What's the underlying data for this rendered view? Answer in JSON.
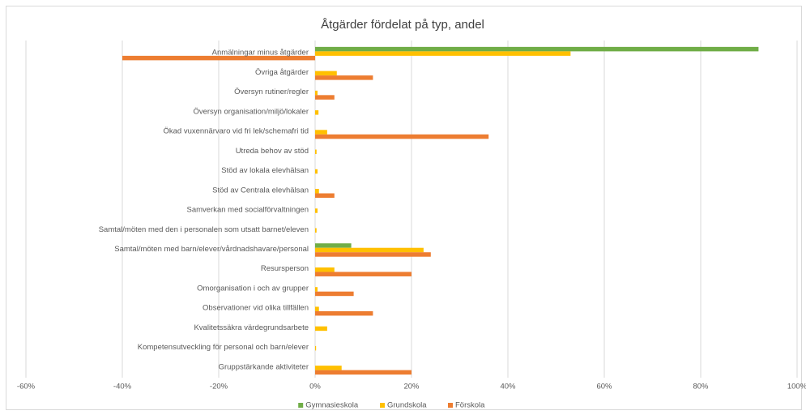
{
  "chart_data": {
    "type": "barh",
    "title": "Åtgärder fördelat på typ, andel",
    "categories": [
      "Anmälningar minus åtgärder",
      "Övriga åtgärder",
      "Översyn rutiner/regler",
      "Översyn organisation/miljö/lokaler",
      "Ökad vuxennärvaro vid fri lek/schemafri tid",
      "Utreda behov av stöd",
      "Stöd av lokala elevhälsan",
      "Stöd av Centrala elevhälsan",
      "Samverkan med socialförvaltningen",
      "Samtal/möten med den i personalen som utsatt barnet/eleven",
      "Samtal/möten med barn/elever/vårdnadshavare/personal",
      "Resursperson",
      "Omorganisation i och av grupper",
      "Observationer vid olika tillfällen",
      "Kvalitetssäkra värdegrundsarbete",
      "Kompetensutveckling för personal och barn/elever",
      "Gruppstärkande aktiviteter"
    ],
    "series": [
      {
        "name": "Gymnasieskola",
        "color": "#70ad47",
        "values": [
          92,
          0,
          0,
          0,
          0,
          0,
          0,
          0,
          0,
          0,
          7.5,
          0,
          0,
          0,
          0,
          0,
          0
        ]
      },
      {
        "name": "Grundskola",
        "color": "#ffc000",
        "values": [
          53,
          4.5,
          0.5,
          0.7,
          2.5,
          0.3,
          0.5,
          0.8,
          0.5,
          0.3,
          22.5,
          4,
          0.5,
          0.8,
          2.5,
          0.2,
          5.5
        ]
      },
      {
        "name": "Förskola",
        "color": "#ed7d31",
        "values": [
          -40,
          12,
          4,
          0,
          36,
          0,
          0,
          4,
          0,
          0,
          24,
          20,
          8,
          12,
          0,
          0,
          20
        ]
      }
    ],
    "xlim": [
      -60,
      100
    ],
    "xticks": [
      {
        "value": -60,
        "label": "-60%"
      },
      {
        "value": -40,
        "label": "-40%"
      },
      {
        "value": -20,
        "label": "-20%"
      },
      {
        "value": 0,
        "label": "0%"
      },
      {
        "value": 20,
        "label": "20%"
      },
      {
        "value": 40,
        "label": "40%"
      },
      {
        "value": 60,
        "label": "60%"
      },
      {
        "value": 80,
        "label": "80%"
      },
      {
        "value": 100,
        "label": "100%"
      }
    ],
    "grid": true,
    "legend": "bottom"
  }
}
